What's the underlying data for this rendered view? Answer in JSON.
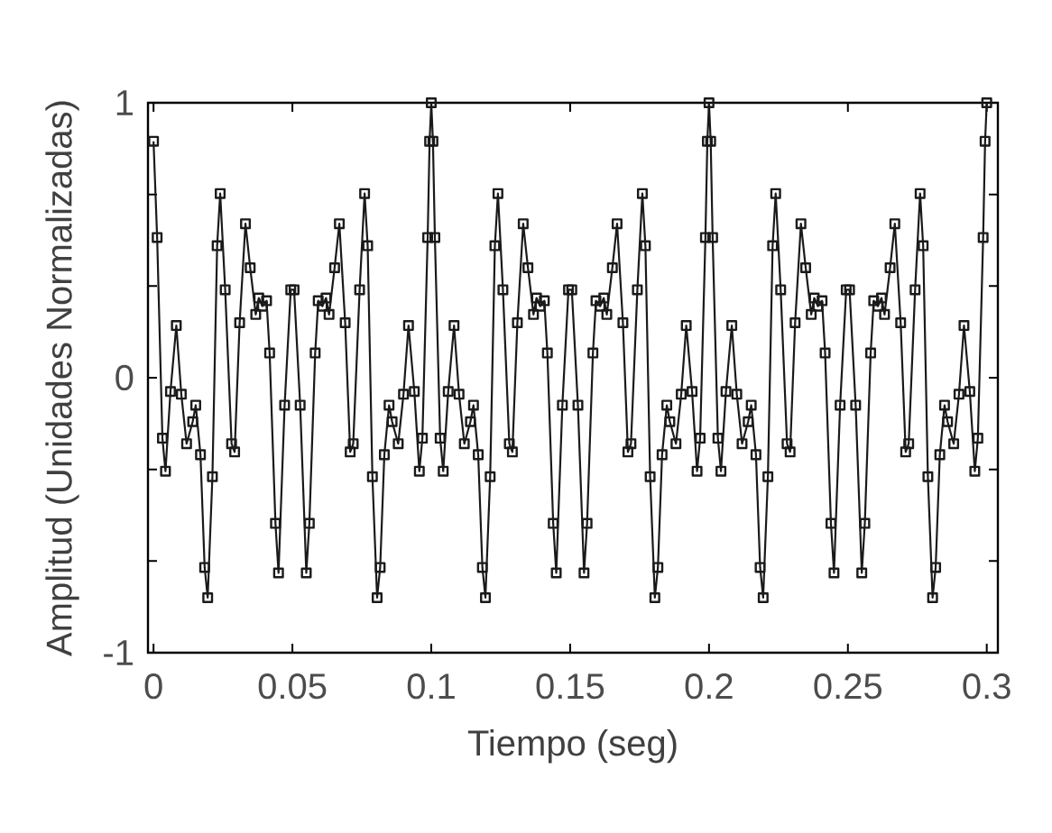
{
  "chart_data": {
    "type": "line",
    "xlabel": "Tiempo (seg)",
    "ylabel": "Amplitud (Unidades Normalizadas)",
    "color": "#1a1a1a",
    "marker": "square",
    "line_style": "solid",
    "xlim": [
      -0.002,
      0.304
    ],
    "ylim": [
      -1,
      1
    ],
    "xticks": [
      0,
      0.05,
      0.1,
      0.15,
      0.2,
      0.25,
      0.3
    ],
    "yticks": [
      -1,
      {
        "value": -0.6667,
        "label": null
      },
      {
        "value": -0.3333,
        "label": null
      },
      0,
      {
        "value": 0.3333,
        "label": null
      },
      {
        "value": 0.6667,
        "label": null
      },
      1
    ],
    "x": [
      0,
      0.0013,
      0.0032,
      0.0043,
      0.0061,
      0.0082,
      0.01,
      0.0119,
      0.0141,
      0.0152,
      0.0169,
      0.0184,
      0.0195,
      0.0212,
      0.0229,
      0.024,
      0.0258,
      0.0281,
      0.0292,
      0.031,
      0.0331,
      0.0348,
      0.0368,
      0.0379,
      0.0392,
      0.0407,
      0.0418,
      0.0439,
      0.045,
      0.0472,
      0.0494,
      0.0506,
      0.0528,
      0.055,
      0.0561,
      0.0582,
      0.0593,
      0.0608,
      0.0621,
      0.0632,
      0.0652,
      0.0669,
      0.069,
      0.0708,
      0.0719,
      0.0742,
      0.076,
      0.0771,
      0.0788,
      0.0805,
      0.0816,
      0.0831,
      0.0848,
      0.0859,
      0.0881,
      0.09,
      0.0918,
      0.0939,
      0.0957,
      0.0968,
      0.0987,
      0.0994,
      0.1,
      0.1006,
      0.1013,
      0.1032,
      0.1043,
      0.1061,
      0.1082,
      0.11,
      0.1119,
      0.1141,
      0.1152,
      0.1169,
      0.1184,
      0.1195,
      0.1212,
      0.1229,
      0.124,
      0.1258,
      0.1281,
      0.1292,
      0.131,
      0.1331,
      0.1348,
      0.1368,
      0.1379,
      0.1392,
      0.1407,
      0.1418,
      0.1439,
      0.145,
      0.1472,
      0.1494,
      0.1506,
      0.1528,
      0.155,
      0.1561,
      0.1582,
      0.1593,
      0.1608,
      0.1621,
      0.1632,
      0.1652,
      0.1669,
      0.169,
      0.1708,
      0.1719,
      0.1742,
      0.176,
      0.1771,
      0.1788,
      0.1805,
      0.1816,
      0.1831,
      0.1848,
      0.1859,
      0.1881,
      0.19,
      0.1918,
      0.1939,
      0.1957,
      0.1968,
      0.1987,
      0.1994,
      0.2,
      0.2006,
      0.2013,
      0.2032,
      0.2043,
      0.2061,
      0.2082,
      0.21,
      0.2119,
      0.2141,
      0.2152,
      0.2169,
      0.2184,
      0.2195,
      0.2212,
      0.2229,
      0.224,
      0.2258,
      0.2281,
      0.2292,
      0.231,
      0.2331,
      0.2348,
      0.2368,
      0.2379,
      0.2392,
      0.2407,
      0.2418,
      0.2439,
      0.245,
      0.2472,
      0.2494,
      0.2506,
      0.2528,
      0.255,
      0.2561,
      0.2582,
      0.2593,
      0.2608,
      0.2621,
      0.2632,
      0.2652,
      0.2669,
      0.269,
      0.2708,
      0.2719,
      0.2742,
      0.276,
      0.2771,
      0.2788,
      0.2805,
      0.2816,
      0.2831,
      0.2848,
      0.2859,
      0.2881,
      0.29,
      0.2918,
      0.2939,
      0.2957,
      0.2968,
      0.2987,
      0.2994,
      0.3
    ],
    "values": [
      0.86,
      0.51,
      -0.22,
      -0.34,
      -0.05,
      0.19,
      -0.06,
      -0.24,
      -0.16,
      -0.1,
      -0.28,
      -0.69,
      -0.8,
      -0.36,
      0.48,
      0.67,
      0.32,
      -0.24,
      -0.27,
      0.2,
      0.56,
      0.4,
      0.23,
      0.29,
      0.26,
      0.28,
      0.09,
      -0.53,
      -0.71,
      -0.1,
      0.32,
      0.32,
      -0.1,
      -0.71,
      -0.53,
      0.09,
      0.28,
      0.26,
      0.29,
      0.23,
      0.4,
      0.56,
      0.2,
      -0.27,
      -0.24,
      0.32,
      0.67,
      0.48,
      -0.36,
      -0.8,
      -0.69,
      -0.28,
      -0.1,
      -0.16,
      -0.24,
      -0.06,
      0.19,
      -0.05,
      -0.34,
      -0.22,
      0.51,
      0.86,
      1.0,
      0.86,
      0.51,
      -0.22,
      -0.34,
      -0.05,
      0.19,
      -0.06,
      -0.24,
      -0.16,
      -0.1,
      -0.28,
      -0.69,
      -0.8,
      -0.36,
      0.48,
      0.67,
      0.32,
      -0.24,
      -0.27,
      0.2,
      0.56,
      0.4,
      0.23,
      0.29,
      0.26,
      0.28,
      0.09,
      -0.53,
      -0.71,
      -0.1,
      0.32,
      0.32,
      -0.1,
      -0.71,
      -0.53,
      0.09,
      0.28,
      0.26,
      0.29,
      0.23,
      0.4,
      0.56,
      0.2,
      -0.27,
      -0.24,
      0.32,
      0.67,
      0.48,
      -0.36,
      -0.8,
      -0.69,
      -0.28,
      -0.1,
      -0.16,
      -0.24,
      -0.06,
      0.19,
      -0.05,
      -0.34,
      -0.22,
      0.51,
      0.86,
      1.0,
      0.86,
      0.51,
      -0.22,
      -0.34,
      -0.05,
      0.19,
      -0.06,
      -0.24,
      -0.16,
      -0.1,
      -0.28,
      -0.69,
      -0.8,
      -0.36,
      0.48,
      0.67,
      0.32,
      -0.24,
      -0.27,
      0.2,
      0.56,
      0.4,
      0.23,
      0.29,
      0.26,
      0.28,
      0.09,
      -0.53,
      -0.71,
      -0.1,
      0.32,
      0.32,
      -0.1,
      -0.71,
      -0.53,
      0.09,
      0.28,
      0.26,
      0.29,
      0.23,
      0.4,
      0.56,
      0.2,
      -0.27,
      -0.24,
      0.32,
      0.67,
      0.48,
      -0.36,
      -0.8,
      -0.69,
      -0.28,
      -0.1,
      -0.16,
      -0.24,
      -0.06,
      0.19,
      -0.05,
      -0.34,
      -0.22,
      0.51,
      0.86,
      1.0
    ]
  }
}
